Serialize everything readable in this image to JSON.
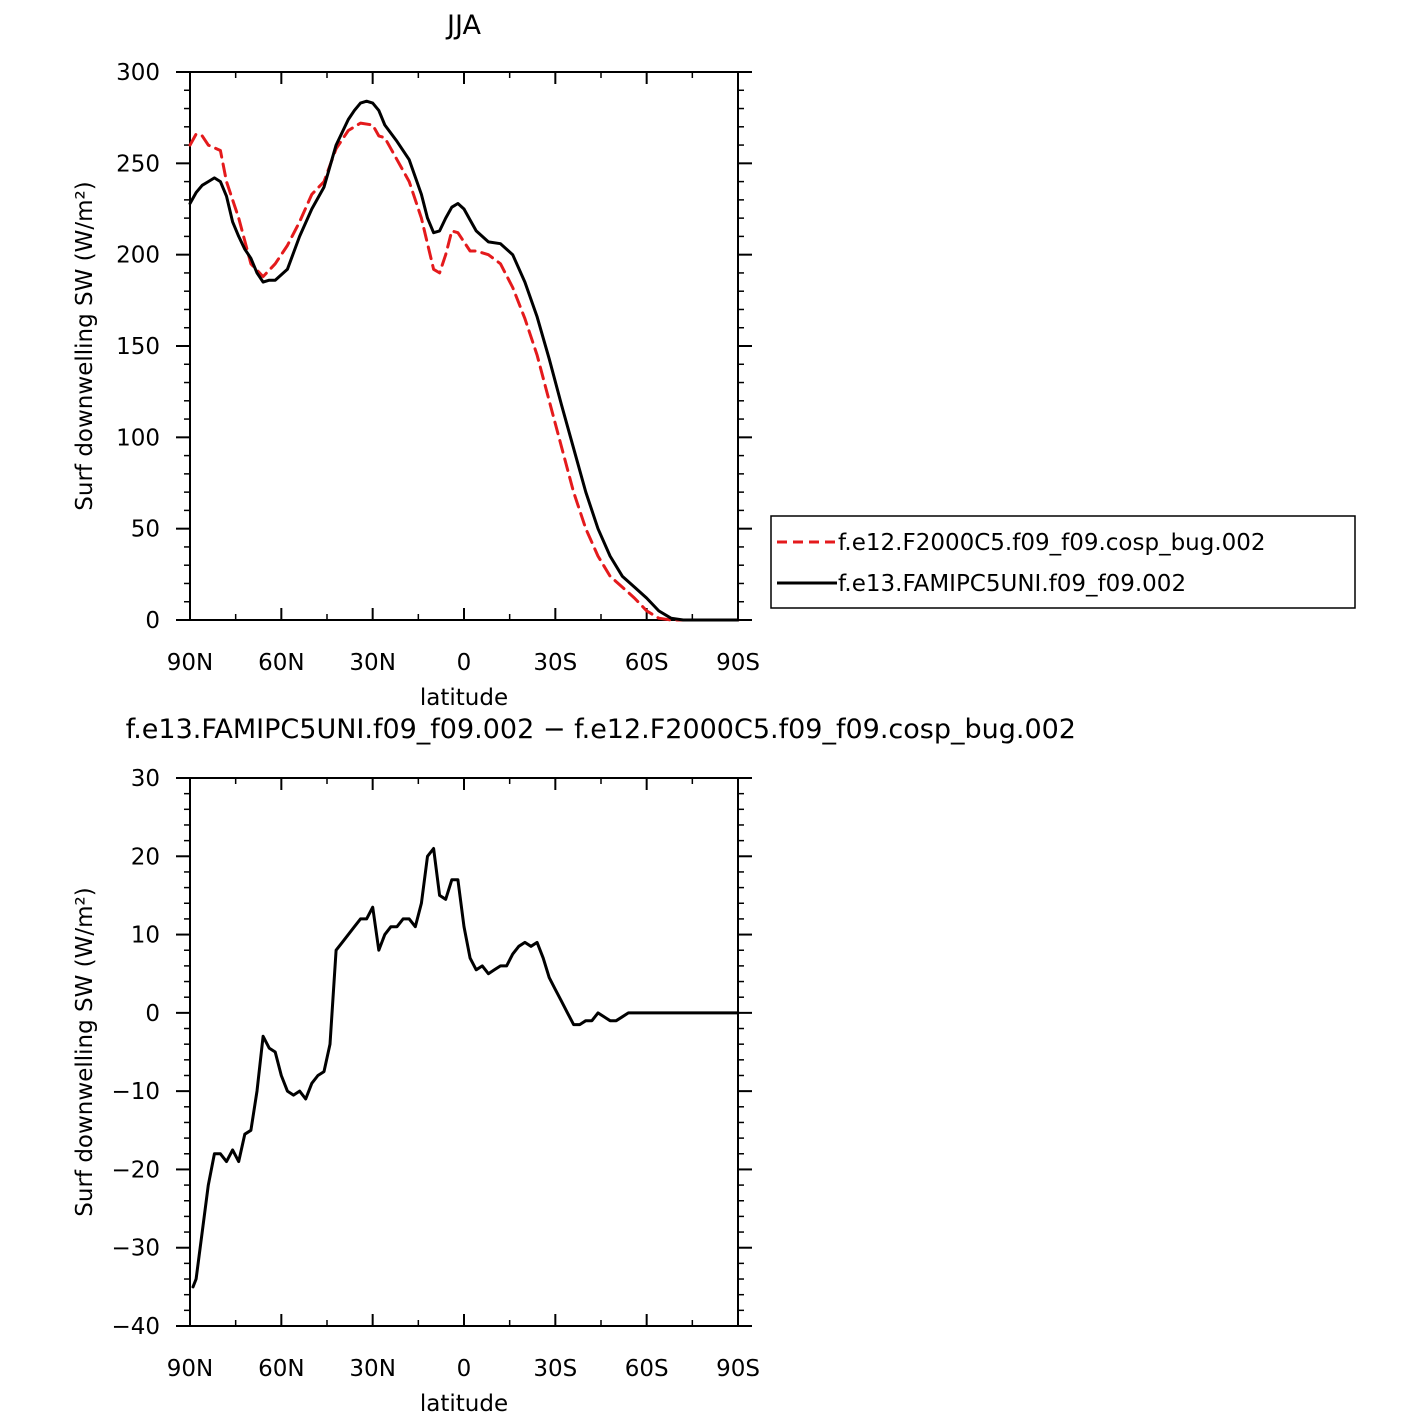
{
  "chart_data": [
    {
      "type": "line",
      "title": "JJA",
      "xlabel": "latitude",
      "ylabel": "Surf downwelling SW (W/m²)",
      "xlim": [
        -90,
        90
      ],
      "ylim": [
        0,
        300
      ],
      "xticks": [
        -90,
        -60,
        -30,
        0,
        30,
        60,
        90
      ],
      "xtick_labels": [
        "90N",
        "60N",
        "30N",
        "0",
        "30S",
        "60S",
        "90S"
      ],
      "yticks": [
        0,
        50,
        100,
        150,
        200,
        250,
        300
      ],
      "ytick_labels": [
        "0",
        "50",
        "100",
        "150",
        "200",
        "250",
        "300"
      ],
      "legend_position": "right",
      "series": [
        {
          "name": "f.e12.F2000C5.f09_f09.cosp_bug.002",
          "color": "#e41a1c",
          "dash": "dashed",
          "x": [
            -90,
            -88,
            -86,
            -84,
            -80,
            -78,
            -74,
            -70,
            -66,
            -62,
            -58,
            -54,
            -50,
            -46,
            -42,
            -38,
            -34,
            -30,
            -28,
            -26,
            -24,
            -22,
            -18,
            -14,
            -10,
            -8,
            -6,
            -4,
            -2,
            0,
            2,
            4,
            8,
            12,
            16,
            20,
            24,
            28,
            32,
            36,
            40,
            44,
            48,
            52,
            56,
            60,
            64,
            68,
            72,
            76,
            80,
            84,
            90
          ],
          "y": [
            260,
            266,
            265,
            260,
            257,
            240,
            220,
            195,
            188,
            195,
            205,
            218,
            233,
            240,
            258,
            268,
            272,
            271,
            265,
            264,
            258,
            252,
            240,
            220,
            192,
            190,
            200,
            213,
            212,
            207,
            202,
            202,
            200,
            195,
            182,
            165,
            145,
            120,
            95,
            70,
            50,
            35,
            24,
            18,
            12,
            5,
            1,
            0,
            0,
            0,
            0,
            0,
            0
          ]
        },
        {
          "name": "f.e13.FAMIPC5UNI.f09_f09.002",
          "color": "#000000",
          "dash": "solid",
          "x": [
            -90,
            -88,
            -86,
            -84,
            -82,
            -80,
            -78,
            -76,
            -74,
            -72,
            -70,
            -68,
            -66,
            -64,
            -62,
            -58,
            -54,
            -50,
            -46,
            -42,
            -38,
            -36,
            -34,
            -32,
            -30,
            -28,
            -26,
            -22,
            -18,
            -14,
            -12,
            -10,
            -8,
            -6,
            -4,
            -2,
            0,
            2,
            4,
            8,
            12,
            16,
            20,
            24,
            28,
            32,
            36,
            40,
            44,
            48,
            52,
            56,
            60,
            64,
            68,
            72,
            76,
            80,
            84,
            90
          ],
          "y": [
            228,
            234,
            238,
            240,
            242,
            240,
            232,
            218,
            210,
            203,
            198,
            190,
            185,
            186,
            186,
            192,
            210,
            225,
            237,
            260,
            274,
            279,
            283,
            284,
            283,
            279,
            271,
            262,
            252,
            233,
            220,
            212,
            213,
            220,
            226,
            228,
            225,
            219,
            213,
            207,
            206,
            200,
            185,
            166,
            143,
            118,
            94,
            70,
            50,
            35,
            24,
            18,
            12,
            5,
            1,
            0,
            0,
            0,
            0,
            0
          ]
        }
      ]
    },
    {
      "type": "line",
      "title": "f.e13.FAMIPC5UNI.f09_f09.002 − f.e12.F2000C5.f09_f09.cosp_bug.002",
      "xlabel": "latitude",
      "ylabel": "Surf downwelling SW (W/m²)",
      "xlim": [
        -90,
        90
      ],
      "ylim": [
        -40,
        30
      ],
      "xticks": [
        -90,
        -60,
        -30,
        0,
        30,
        60,
        90
      ],
      "xtick_labels": [
        "90N",
        "60N",
        "30N",
        "0",
        "30S",
        "60S",
        "90S"
      ],
      "yticks": [
        -40,
        -30,
        -20,
        -10,
        0,
        10,
        20,
        30
      ],
      "ytick_labels": [
        "−40",
        "−30",
        "−20",
        "−10",
        "0",
        "10",
        "20",
        "30"
      ],
      "series": [
        {
          "color": "#000000",
          "dash": "solid",
          "x": [
            -89,
            -88,
            -86,
            -84,
            -82,
            -80,
            -78,
            -76,
            -74,
            -72,
            -70,
            -68,
            -66,
            -64,
            -62,
            -60,
            -58,
            -56,
            -54,
            -52,
            -50,
            -48,
            -46,
            -44,
            -42,
            -40,
            -38,
            -36,
            -34,
            -32,
            -30,
            -28,
            -26,
            -24,
            -22,
            -20,
            -18,
            -16,
            -14,
            -12,
            -10,
            -8,
            -6,
            -4,
            -2,
            0,
            2,
            4,
            6,
            8,
            10,
            12,
            14,
            16,
            18,
            20,
            22,
            24,
            26,
            28,
            30,
            32,
            34,
            36,
            38,
            40,
            42,
            44,
            46,
            48,
            50,
            52,
            54,
            56,
            58,
            60,
            62,
            64,
            66,
            68,
            70,
            72,
            76,
            80,
            84,
            90
          ],
          "y": [
            -35,
            -34,
            -28,
            -22,
            -18,
            -18,
            -19,
            -17.5,
            -19,
            -15.5,
            -15,
            -10,
            -3,
            -4.5,
            -5,
            -8,
            -10,
            -10.5,
            -10,
            -11,
            -9,
            -8,
            -7.5,
            -4,
            8,
            9,
            10,
            11,
            12,
            12,
            13.5,
            8,
            10,
            11,
            11,
            12,
            12,
            11,
            14,
            20,
            21,
            15,
            14.5,
            17,
            17,
            11,
            7,
            5.5,
            6,
            5,
            5.5,
            6,
            6,
            7.5,
            8.5,
            9,
            8.5,
            9,
            7,
            4.5,
            3,
            1.5,
            0,
            -1.5,
            -1.5,
            -1,
            -1,
            0,
            -0.5,
            -1,
            -1,
            -0.5,
            0,
            0,
            0,
            0,
            0,
            0,
            0,
            0,
            0,
            0,
            0,
            0,
            0,
            0
          ]
        }
      ]
    }
  ]
}
